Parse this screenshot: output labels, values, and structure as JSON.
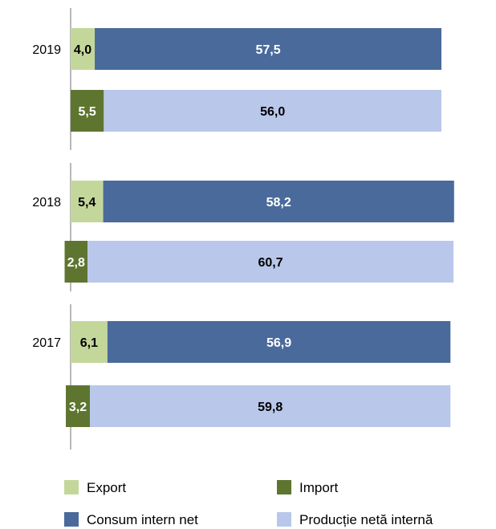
{
  "chart_data": {
    "type": "bar",
    "orientation": "horizontal",
    "stacked": true,
    "grid": false,
    "legend_position": "bottom",
    "categories": [
      "2019",
      "2018",
      "2017"
    ],
    "bars": [
      {
        "year": "2019",
        "segments": [
          {
            "series": "Export",
            "value": 4.0,
            "label": "4,0"
          },
          {
            "series": "Consum intern net",
            "value": 57.5,
            "label": "57,5"
          }
        ]
      },
      {
        "year": "2019",
        "segments": [
          {
            "series": "Import",
            "value": 5.5,
            "label": "5,5"
          },
          {
            "series": "Producție netă internă",
            "value": 56.0,
            "label": "56,0"
          }
        ]
      },
      {
        "year": "2018",
        "segments": [
          {
            "series": "Export",
            "value": 5.4,
            "label": "5,4"
          },
          {
            "series": "Consum intern net",
            "value": 58.2,
            "label": "58,2"
          }
        ]
      },
      {
        "year": "2018",
        "segments": [
          {
            "series": "Import",
            "value": 2.8,
            "label": "2,8"
          },
          {
            "series": "Producție netă internă",
            "value": 60.7,
            "label": "60,7"
          }
        ]
      },
      {
        "year": "2017",
        "segments": [
          {
            "series": "Export",
            "value": 6.1,
            "label": "6,1"
          },
          {
            "series": "Consum intern net",
            "value": 56.9,
            "label": "56,9"
          }
        ]
      },
      {
        "year": "2017",
        "segments": [
          {
            "series": "Import",
            "value": 3.2,
            "label": "3,2"
          },
          {
            "series": "Producție netă internă",
            "value": 59.8,
            "label": "59,8"
          }
        ]
      }
    ],
    "xlim": [
      0,
      61.5
    ],
    "legend": [
      {
        "name": "Export",
        "color": "#c4d79b"
      },
      {
        "name": "Import",
        "color": "#5e7530"
      },
      {
        "name": "Consum intern net",
        "color": "#4a6a9b"
      },
      {
        "name": "Producție netă internă",
        "color": "#b9c7ea"
      }
    ],
    "label_colors": {
      "Export": "#000000",
      "Import": "#ffffff",
      "Consum intern net": "#ffffff",
      "Producție netă internă": "#000000"
    }
  }
}
